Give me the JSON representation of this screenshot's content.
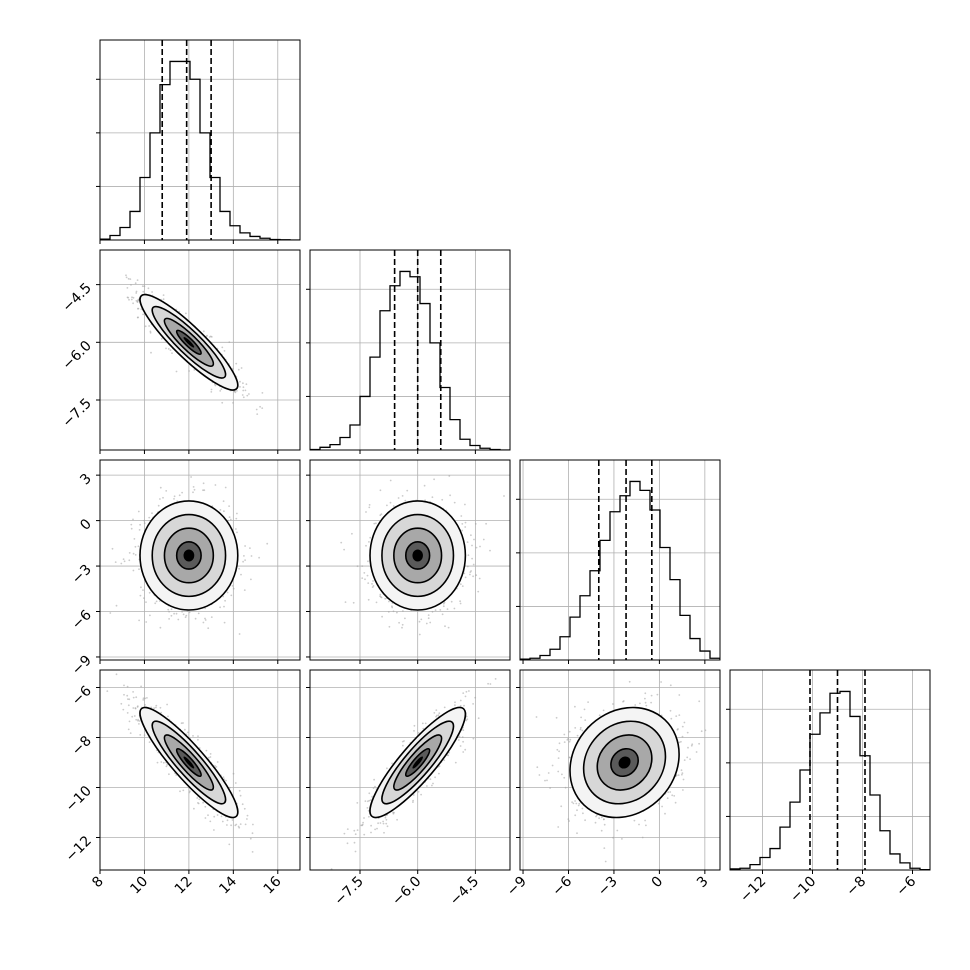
{
  "chart_data": {
    "type": "corner",
    "parameters": [
      {
        "ticks": [
          8,
          10,
          12,
          14,
          16
        ],
        "tick_labels": [
          "8",
          "10",
          "12",
          "14",
          "16"
        ],
        "range": [
          8,
          17
        ],
        "center": 12.0,
        "sigma": 1.1,
        "quantiles": [
          10.8,
          11.9,
          13.0
        ]
      },
      {
        "ticks": [
          -7.5,
          -6.0,
          -4.5
        ],
        "tick_labels": [
          "−7.5",
          "−6.0",
          "−4.5"
        ],
        "range": [
          -8.8,
          -3.6
        ],
        "center": -6.0,
        "sigma": 0.62,
        "quantiles": [
          -6.6,
          -6.0,
          -5.4
        ]
      },
      {
        "ticks": [
          -9,
          -6,
          -3,
          0,
          3
        ],
        "tick_labels": [
          "−9",
          "−6",
          "−3",
          "0",
          "3"
        ],
        "range": [
          -9.2,
          4.0
        ],
        "center": -2.3,
        "sigma": 1.8,
        "quantiles": [
          -4.0,
          -2.2,
          -0.5
        ]
      },
      {
        "ticks": [
          -12,
          -10,
          -8,
          -6
        ],
        "tick_labels": [
          "−12",
          "−10",
          "−8",
          "−6"
        ],
        "range": [
          -13.3,
          -5.3
        ],
        "center": -9.0,
        "sigma": 1.1,
        "quantiles": [
          -10.1,
          -9.0,
          -7.9
        ]
      }
    ],
    "correlations": {
      "1-0": -0.9,
      "2-0": 0.0,
      "2-1": 0.0,
      "3-0": -0.9,
      "3-1": 0.88,
      "3-2": 0.15
    },
    "histograms": [
      [
        0.005,
        0.025,
        0.07,
        0.16,
        0.35,
        0.6,
        0.87,
        1.0,
        1.0,
        0.9,
        0.6,
        0.35,
        0.16,
        0.08,
        0.04,
        0.02,
        0.01,
        0.003,
        0.001,
        0.0
      ],
      [
        0.003,
        0.015,
        0.03,
        0.07,
        0.14,
        0.3,
        0.52,
        0.78,
        0.92,
        1.0,
        0.97,
        0.82,
        0.6,
        0.35,
        0.17,
        0.06,
        0.025,
        0.01,
        0.003,
        0.0
      ],
      [
        0.005,
        0.01,
        0.025,
        0.06,
        0.13,
        0.24,
        0.36,
        0.5,
        0.67,
        0.83,
        0.92,
        1.0,
        0.95,
        0.84,
        0.63,
        0.45,
        0.25,
        0.12,
        0.05,
        0.01
      ],
      [
        0.006,
        0.01,
        0.03,
        0.07,
        0.12,
        0.24,
        0.38,
        0.56,
        0.76,
        0.88,
        0.99,
        1.0,
        0.86,
        0.64,
        0.42,
        0.22,
        0.09,
        0.04,
        0.01,
        0.002
      ]
    ],
    "histogram_ylim": [
      0,
      1.12
    ],
    "histogram_y_grid_fraction": [
      0.3,
      0.6,
      0.9
    ],
    "contour_levels_sigma": [
      0.5,
      1.0,
      1.5,
      2.0
    ],
    "grid": true
  }
}
